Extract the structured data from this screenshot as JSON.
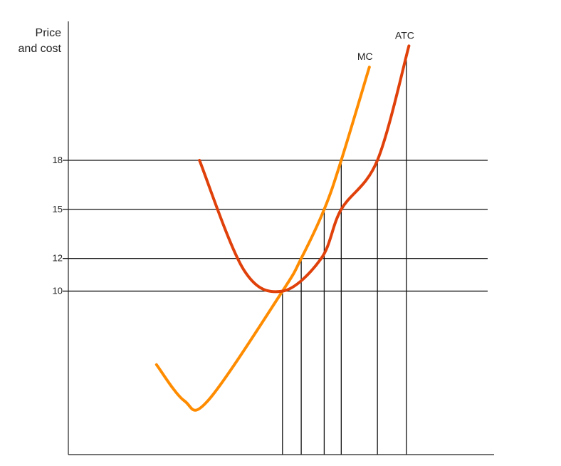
{
  "chart_data": {
    "type": "line",
    "ylabel_line1": "Price",
    "ylabel_line2": "and cost",
    "xlabel": "",
    "y_ticks": [
      18,
      15,
      12,
      10
    ],
    "ylim": [
      0,
      26.5
    ],
    "xlim": [
      0,
      100
    ],
    "grid": true,
    "legend": "none",
    "series": [
      {
        "name": "MC",
        "color": "#FF8C00",
        "points": [
          [
            20.7,
            5.5
          ],
          [
            27.2,
            3.3
          ],
          [
            32.8,
            3.3
          ],
          [
            50.3,
            10.0
          ],
          [
            54.7,
            12.0
          ],
          [
            60.1,
            15.0
          ],
          [
            64.1,
            18.0
          ],
          [
            70.7,
            23.7
          ]
        ]
      },
      {
        "name": "ATC",
        "color": "#E0400A",
        "points": [
          [
            30.8,
            18.0
          ],
          [
            41.2,
            11.3
          ],
          [
            50.3,
            10.0
          ],
          [
            59.4,
            12.0
          ],
          [
            64.1,
            15.0
          ],
          [
            72.6,
            18.0
          ],
          [
            80.0,
            25.0
          ]
        ]
      }
    ],
    "quantity_markers": [
      50.3,
      54.7,
      60.1,
      64.1,
      72.6,
      79.4
    ]
  }
}
